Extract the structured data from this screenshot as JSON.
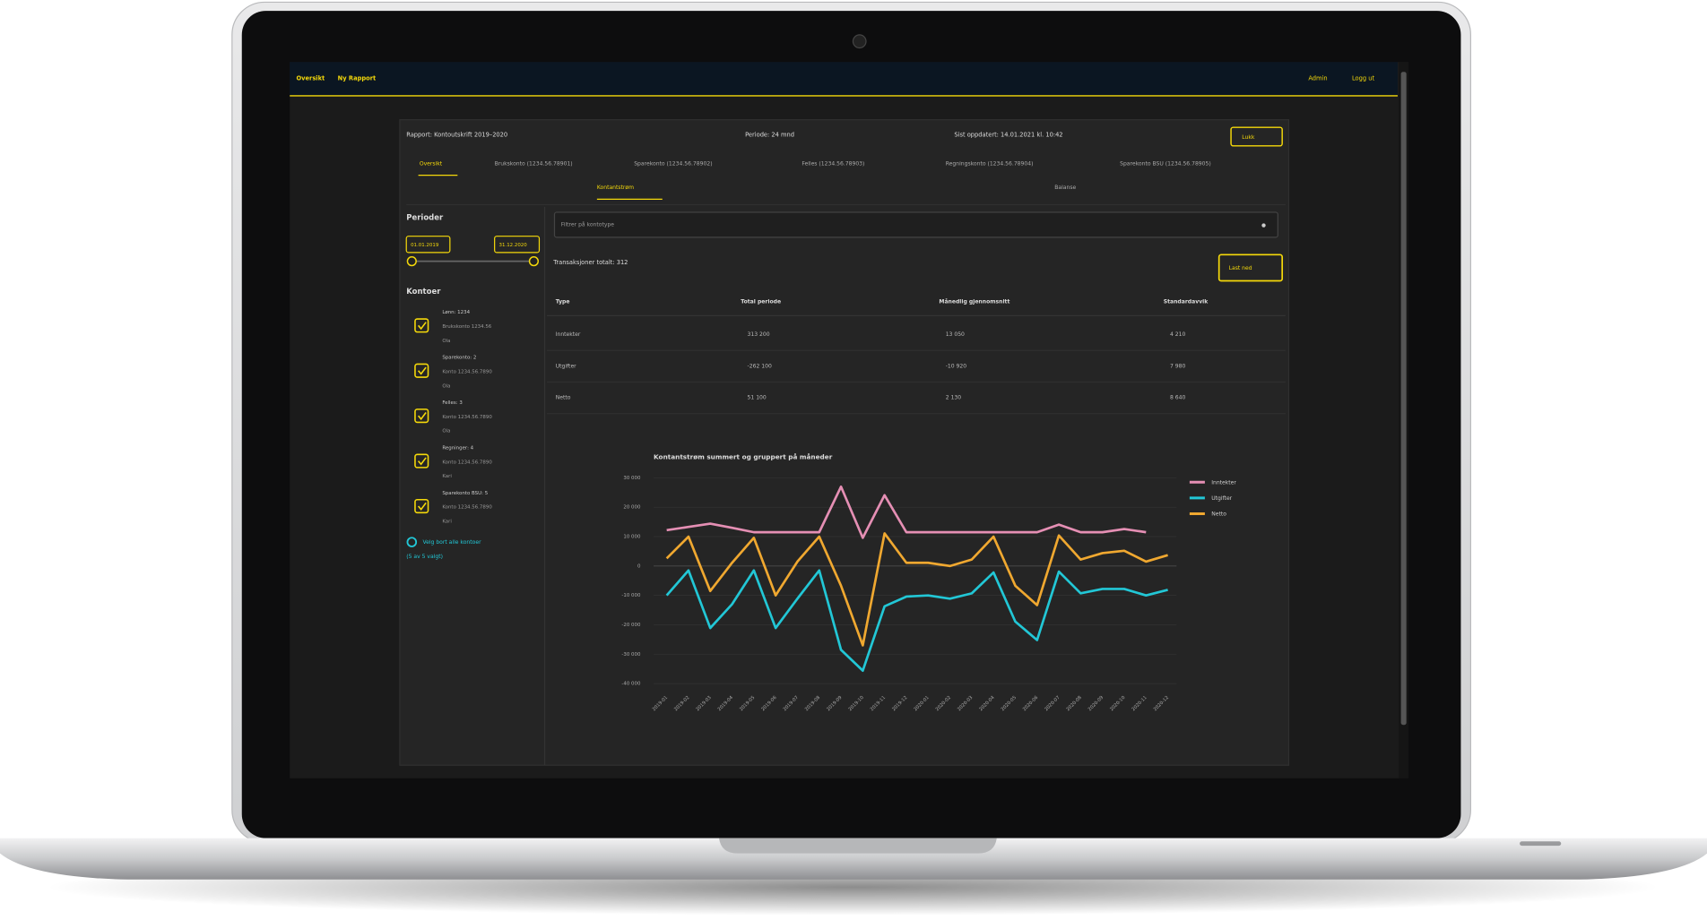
{
  "nav": {
    "left": [
      "Oversikt",
      "Ny Rapport"
    ],
    "right": [
      "Admin",
      "Logg ut"
    ]
  },
  "report": {
    "name": "Rapport: Kontoutskrift 2019–2020",
    "period": "Periode: 24 mnd",
    "updated": "Sist oppdatert: 14.01.2021 kl. 10:42",
    "action": "Lukk"
  },
  "tabs": [
    "Oversikt",
    "Brukskonto (1234.56.78901)",
    "Sparekonto (1234.56.78902)",
    "Felles (1234.56.78903)",
    "Regningskonto (1234.56.78904)",
    "Sparekonto BSU (1234.56.78905)"
  ],
  "subtabs": [
    "Kontantstrøm",
    "Balanse"
  ],
  "sidebar": {
    "periods_title": "Perioder",
    "from": "01.01.2019",
    "to": "31.12.2020",
    "accounts_title": "Kontoer",
    "accounts": [
      [
        "Lønn: 1234",
        "Brukskonto 1234.56",
        "Ola"
      ],
      [
        "Sparekonto: 2",
        "Konto 1234.56.7890",
        "Ola"
      ],
      [
        "Felles: 3",
        "Konto 1234.56.7890",
        "Ola"
      ],
      [
        "Regninger: 4",
        "Konto 1234.56.7890",
        "Kari"
      ],
      [
        "Sparekonto BSU: 5",
        "Konto 1234.56.7890",
        "Kari"
      ]
    ],
    "select_all": "Velg bort alle kontoer",
    "select_all_2": "(5 av 5 valgt)"
  },
  "filter": "Filtrer på kontotype",
  "transactions": "Transaksjoner totalt: 312",
  "download": "Last ned",
  "table": {
    "header": [
      "Type",
      "Total periode",
      "Månedlig gjennomsnitt",
      "Standardavvik"
    ],
    "rows": [
      [
        "Inntekter",
        "313 200",
        "13 050",
        "4 210"
      ],
      [
        "Utgifter",
        "-262 100",
        "-10 920",
        "7 980"
      ],
      [
        "Netto",
        "51 100",
        "2 130",
        "8 640"
      ]
    ]
  },
  "chart_data": {
    "type": "line",
    "title": "Kontantstrøm summert og gruppert på måneder",
    "categories": [
      "2019-01",
      "2019-02",
      "2019-03",
      "2019-04",
      "2019-05",
      "2019-06",
      "2019-07",
      "2019-08",
      "2019-09",
      "2019-10",
      "2019-11",
      "2019-12",
      "2020-01",
      "2020-02",
      "2020-03",
      "2020-04",
      "2020-05",
      "2020-06",
      "2020-07",
      "2020-08",
      "2020-09",
      "2020-10",
      "2020-11",
      "2020-12"
    ],
    "series": [
      {
        "name": "Inntekter",
        "color": "#e58fb4",
        "values": [
          12200,
          13300,
          14400,
          13000,
          11500,
          11500,
          11500,
          11500,
          27000,
          9600,
          24100,
          11500,
          11500,
          11500,
          11500,
          11500,
          11500,
          11500,
          14100,
          11500,
          11500,
          12600,
          11500,
          null
        ]
      },
      {
        "name": "Utgifter",
        "color": "#22c7d6",
        "values": [
          -10000,
          -1500,
          -21100,
          -13000,
          -1500,
          -21100,
          -11100,
          -1500,
          -28500,
          -35600,
          -13700,
          -10400,
          -10000,
          -11100,
          -9300,
          -2200,
          -18900,
          -25200,
          -1900,
          -9300,
          -7800,
          -7800,
          -10000,
          -8100
        ]
      },
      {
        "name": "Netto",
        "color": "#f0a830",
        "values": [
          2600,
          10000,
          -8500,
          1100,
          9600,
          -10000,
          1500,
          10000,
          -6700,
          -27000,
          11100,
          1100,
          1100,
          0,
          2200,
          10000,
          -6700,
          -13300,
          10400,
          2200,
          4400,
          5200,
          1500,
          3700
        ]
      }
    ],
    "ylim": [
      -40000,
      30000
    ],
    "yticks": [
      {
        "value": -40000,
        "label": "-40 000"
      },
      {
        "value": -30000,
        "label": "-30 000"
      },
      {
        "value": -20000,
        "label": "-20 000"
      },
      {
        "value": -10000,
        "label": "-10 000"
      },
      0,
      {
        "value": 10000,
        "label": "10 000"
      },
      {
        "value": 20000,
        "label": "20 000"
      },
      {
        "value": 30000,
        "label": "30 000"
      }
    ],
    "grid": true,
    "legend": "right"
  }
}
